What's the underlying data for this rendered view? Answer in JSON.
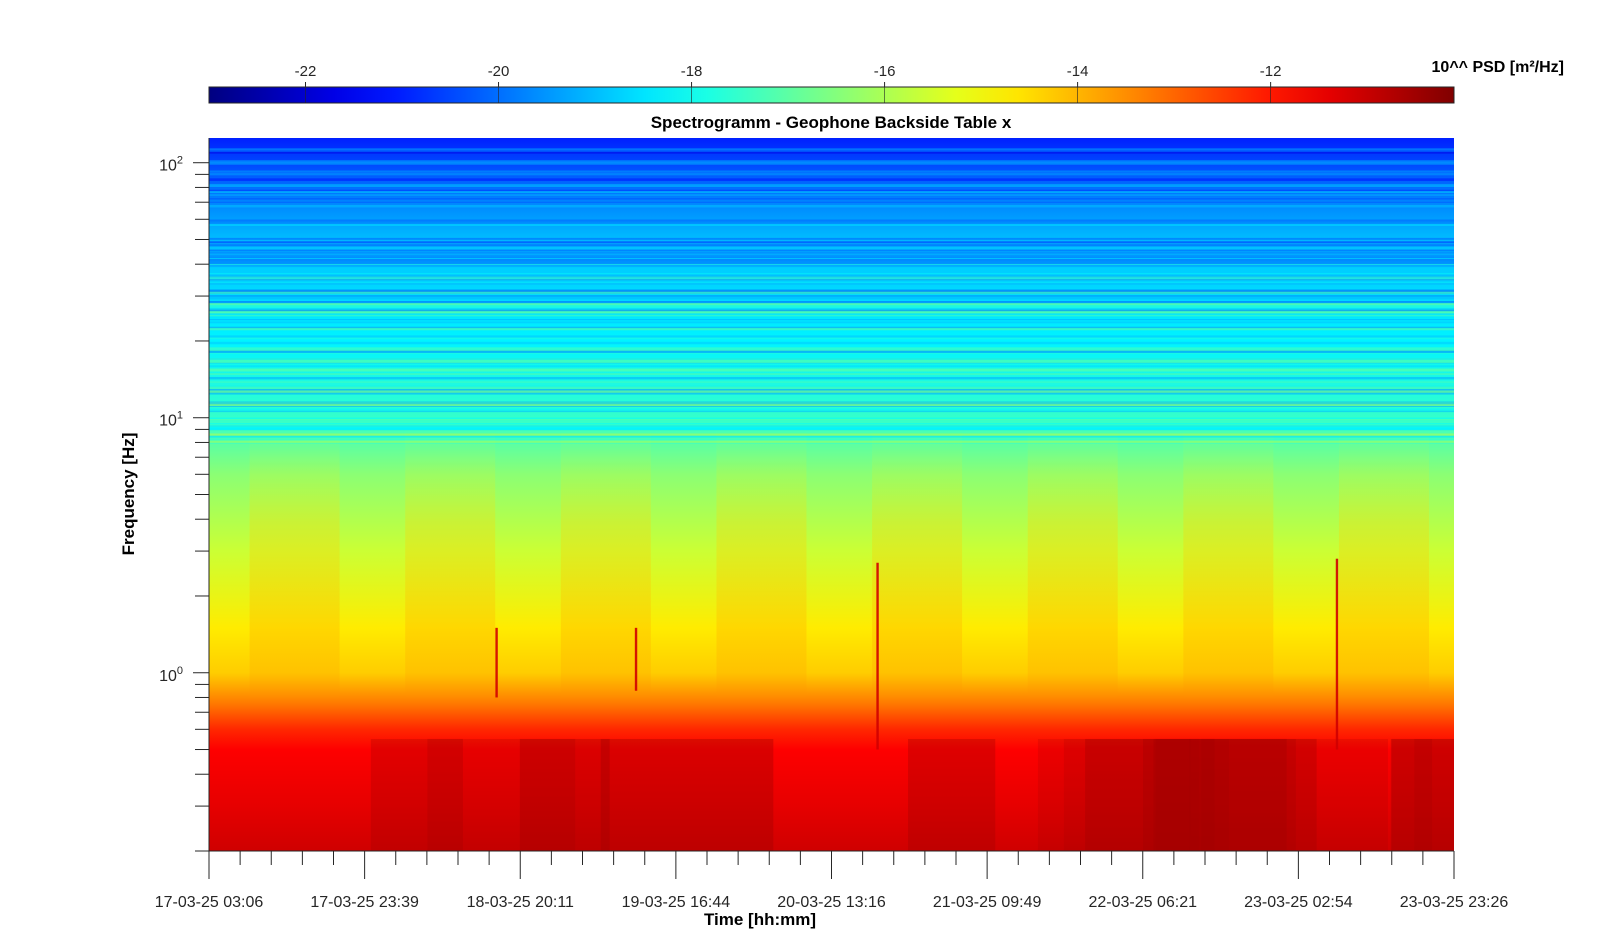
{
  "chart_data": {
    "type": "heatmap",
    "title": "Spectrogramm - Geophone Backside Table x",
    "xlabel": "Time [hh:mm]",
    "ylabel": "Frequency [Hz]",
    "x_ticks": [
      "17-03-25 03:06",
      "17-03-25 23:39",
      "18-03-25 20:11",
      "19-03-25 16:44",
      "20-03-25 13:16",
      "21-03-25 09:49",
      "22-03-25 06:21",
      "23-03-25 02:54",
      "23-03-25 23:26"
    ],
    "y_scale": "log",
    "ylim": [
      0.2,
      125
    ],
    "y_ticks": [
      {
        "base": "10",
        "exp": "2",
        "value": 100
      },
      {
        "base": "10",
        "exp": "1",
        "value": 10
      },
      {
        "base": "10",
        "exp": "0",
        "value": 1
      }
    ],
    "colorbar": {
      "label": "10^^ PSD [m²/Hz]",
      "colormap": "jet",
      "range": [
        -23,
        -10.1
      ],
      "ticks": [
        "-22",
        "-20",
        "-18",
        "-16",
        "-14",
        "-12"
      ],
      "tick_values": [
        -22,
        -20,
        -18,
        -16,
        -14,
        -12
      ]
    },
    "psd_profile": [
      {
        "freq": 0.2,
        "log10_psd": -11.1
      },
      {
        "freq": 0.3,
        "log10_psd": -11.4
      },
      {
        "freq": 0.5,
        "log10_psd": -11.7
      },
      {
        "freq": 0.6,
        "log10_psd": -12.2
      },
      {
        "freq": 0.75,
        "log10_psd": -13.2
      },
      {
        "freq": 1.0,
        "log10_psd": -14.3
      },
      {
        "freq": 1.5,
        "log10_psd": -14.7
      },
      {
        "freq": 3,
        "log10_psd": -15.6
      },
      {
        "freq": 6,
        "log10_psd": -16.4
      },
      {
        "freq": 10,
        "log10_psd": -17.5
      },
      {
        "freq": 20,
        "log10_psd": -18.3
      },
      {
        "freq": 50,
        "log10_psd": -19.0
      },
      {
        "freq": 80,
        "log10_psd": -20.0
      },
      {
        "freq": 125,
        "log10_psd": -21.0
      }
    ]
  }
}
